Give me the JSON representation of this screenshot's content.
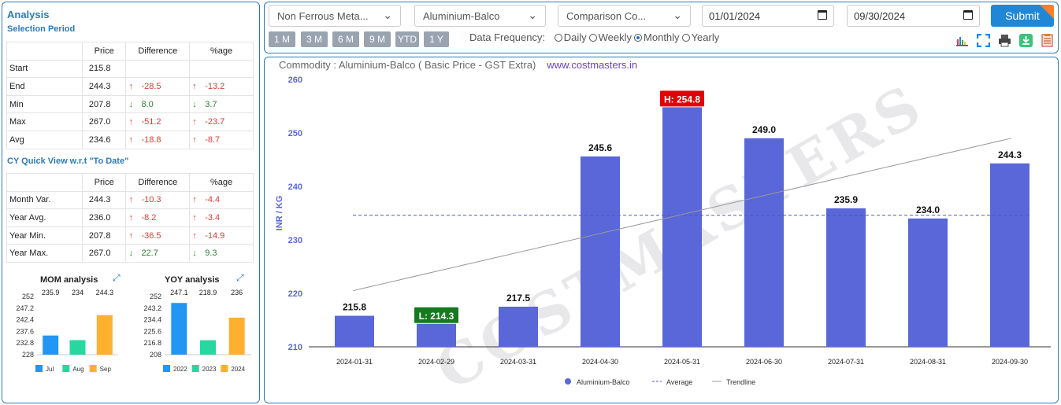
{
  "analysis": {
    "title": "Analysis",
    "selection_title": "Selection Period",
    "cy_title": "CY Quick View w.r.t \"To Date\"",
    "headers": [
      "Price",
      "Difference",
      "%age"
    ],
    "period_rows": [
      {
        "label": "Start",
        "price": "215.8",
        "diff": "",
        "pct": "",
        "dir": ""
      },
      {
        "label": "End",
        "price": "244.3",
        "diff": "-28.5",
        "pct": "-13.2",
        "dir": "up"
      },
      {
        "label": "Min",
        "price": "207.8",
        "diff": "8.0",
        "pct": "3.7",
        "dir": "dn"
      },
      {
        "label": "Max",
        "price": "267.0",
        "diff": "-51.2",
        "pct": "-23.7",
        "dir": "up"
      },
      {
        "label": "Avg",
        "price": "234.6",
        "diff": "-18.8",
        "pct": "-8.7",
        "dir": "up"
      }
    ],
    "cy_rows": [
      {
        "label": "Month Var.",
        "price": "244.3",
        "diff": "-10.3",
        "pct": "-4.4",
        "dir": "up"
      },
      {
        "label": "Year Avg.",
        "price": "236.0",
        "diff": "-8.2",
        "pct": "-3.4",
        "dir": "up"
      },
      {
        "label": "Year Min.",
        "price": "207.8",
        "diff": "-36.5",
        "pct": "-14.9",
        "dir": "up"
      },
      {
        "label": "Year Max.",
        "price": "267.0",
        "diff": "22.7",
        "pct": "9.3",
        "dir": "dn"
      }
    ]
  },
  "mom": {
    "title": "MOM analysis",
    "ticks": [
      "252",
      "247.2",
      "242.4",
      "237.6",
      "232.8",
      "228"
    ],
    "values": [
      235.9,
      234,
      244.3
    ],
    "labels": [
      "235.9",
      "234",
      "244.3"
    ],
    "legend": [
      "Jul",
      "Aug",
      "Sep"
    ],
    "colors": [
      "#2196f3",
      "#26d7a0",
      "#ffb02e"
    ],
    "ymin": 228,
    "ymax": 252
  },
  "yoy": {
    "title": "YOY analysis",
    "ticks": [
      "252",
      "243.2",
      "234.4",
      "225.6",
      "216.8",
      "208"
    ],
    "values": [
      247.1,
      218.9,
      236
    ],
    "labels": [
      "247.1",
      "218.9",
      "236"
    ],
    "legend": [
      "2022",
      "2023",
      "2024"
    ],
    "colors": [
      "#2196f3",
      "#26d7a0",
      "#ffb02e"
    ],
    "ymin": 208,
    "ymax": 252
  },
  "filters": {
    "category": "Non Ferrous Meta...",
    "commodity": "Aluminium-Balco",
    "comparison": "Comparison Co...",
    "from": "01/01/2024",
    "to": "09/30/2024",
    "submit": "Submit"
  },
  "periods": [
    "1 M",
    "3 M",
    "6 M",
    "9 M",
    "YTD",
    "1 Y"
  ],
  "frequency": {
    "label": "Data Frequency:",
    "options": [
      "Daily",
      "Weekly",
      "Monthly",
      "Yearly"
    ],
    "selected": "Monthly"
  },
  "chart_header": {
    "title": "Commodity : Aluminium-Balco ( Basic Price - GST Extra)",
    "site": "www.costmasters.in"
  },
  "chart_data": {
    "type": "bar",
    "categories": [
      "2024-01-31",
      "2024-02-29",
      "2024-03-31",
      "2024-04-30",
      "2024-05-31",
      "2024-06-30",
      "2024-07-31",
      "2024-08-31",
      "2024-09-30"
    ],
    "series": [
      {
        "name": "Aluminium-Balco",
        "values": [
          215.8,
          214.3,
          217.5,
          245.6,
          254.8,
          249.0,
          235.9,
          234.0,
          244.3
        ]
      }
    ],
    "labels": [
      "215.8",
      "L: 214.3",
      "217.5",
      "245.6",
      "H: 254.8",
      "249.0",
      "235.9",
      "234.0",
      "244.3"
    ],
    "ylabel": "INR / KG",
    "yticks": [
      "260",
      "250",
      "240",
      "230",
      "220",
      "210"
    ],
    "ylim": [
      210,
      260
    ],
    "average": 234.6,
    "trend": [
      220.5,
      249
    ],
    "legend": [
      "Aluminium-Balco",
      "Average",
      "Trendline"
    ],
    "bar_color": "#5a67d8",
    "high_color": "#e30000",
    "low_color": "#157a1f"
  },
  "watermark": "COSTMASTERS"
}
